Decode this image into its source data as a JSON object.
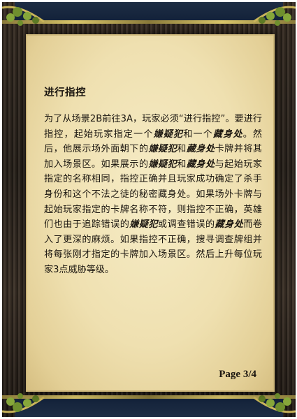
{
  "card": {
    "title": "进行指控",
    "paragraph": [
      {
        "t": "为了从场景2B前往3A，玩家必须“进行指控”。要进行指控，起始玩家指定一个",
        "b": false
      },
      {
        "t": "嫌疑犯",
        "b": true
      },
      {
        "t": "和一个",
        "b": false
      },
      {
        "t": "藏身处",
        "b": true
      },
      {
        "t": "。然后，他展示场外面朝下的",
        "b": false
      },
      {
        "t": "嫌疑犯",
        "b": true
      },
      {
        "t": "和",
        "b": false
      },
      {
        "t": "藏身处",
        "b": true
      },
      {
        "t": "卡牌并将其加入场景区。如果展示的",
        "b": false
      },
      {
        "t": "嫌疑犯",
        "b": true
      },
      {
        "t": "和",
        "b": false
      },
      {
        "t": "藏身处",
        "b": true
      },
      {
        "t": "与起始玩家指定的名称相同，指控正确并且玩家成功确定了杀手身份和这个不法之徒的秘密藏身处。如果场外卡牌与起始玩家指定的卡牌名称不符，则指控不正确，英雄们也由于追踪错误的",
        "b": false
      },
      {
        "t": "嫌疑犯",
        "b": true
      },
      {
        "t": "或调查错误的",
        "b": false
      },
      {
        "t": "藏身处",
        "b": true
      },
      {
        "t": "而卷入了更深的麻烦。如果指控不正确，搜寻调查牌组并将每张刚才指定的卡牌加入场景区。然后上升每位玩家3点威胁等级。",
        "b": false
      }
    ],
    "page": "Page 3/4"
  },
  "colors": {
    "parchment": "#efe0b0",
    "frame_wood": "#2b241d",
    "frame_blue": "#13223a",
    "gold_trim": "#d9c56a",
    "ivy": "#6f8f2e"
  },
  "icons": [
    "ivy-corner-ornament-icon"
  ]
}
